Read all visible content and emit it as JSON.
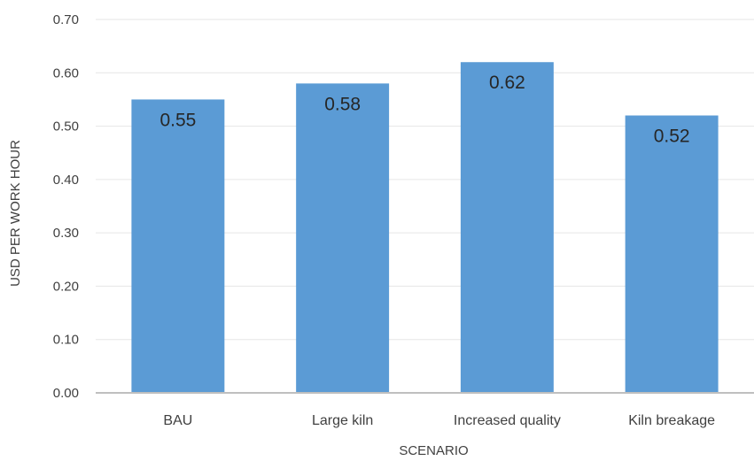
{
  "chart_data": {
    "type": "bar",
    "categories": [
      "BAU",
      "Large kiln",
      "Increased quality",
      "Kiln breakage"
    ],
    "values": [
      0.55,
      0.58,
      0.62,
      0.52
    ],
    "data_labels": [
      "0.55",
      "0.58",
      "0.62",
      "0.52"
    ],
    "title": "",
    "xlabel": "SCENARIO",
    "ylabel": "USD PER WORK HOUR",
    "ylim": [
      0,
      0.7
    ],
    "yticks": [
      "0.00",
      "0.10",
      "0.20",
      "0.30",
      "0.40",
      "0.50",
      "0.60",
      "0.70"
    ],
    "grid": true,
    "legend": "none",
    "colors": {
      "bar": "#5b9bd5",
      "grid": "#e6e6e6",
      "axis": "#bfbfbf"
    }
  }
}
